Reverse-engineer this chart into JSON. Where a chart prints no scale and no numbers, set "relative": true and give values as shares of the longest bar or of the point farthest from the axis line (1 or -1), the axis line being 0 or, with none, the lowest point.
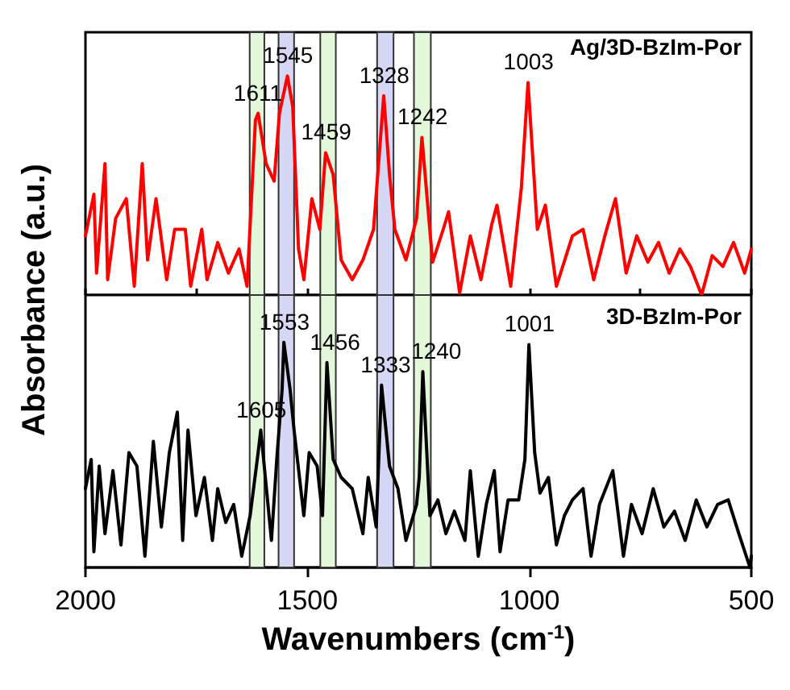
{
  "chart_data": [
    {
      "type": "line",
      "relative": true,
      "xlim": [
        2000,
        500
      ],
      "xticks": [
        {
          "value": 2000,
          "label": null
        },
        {
          "value": 1750,
          "label": null
        },
        {
          "value": 1500,
          "label": null
        },
        {
          "value": 1250,
          "label": null
        },
        {
          "value": 1000,
          "label": null
        },
        {
          "value": 750,
          "label": null
        },
        {
          "value": 500,
          "label": null
        }
      ],
      "tick_labels": false,
      "grid": false,
      "marker": "none",
      "line_style": "solid",
      "series": [
        {
          "color": "#ff0000",
          "x": [
            2000,
            1981,
            1975,
            1956,
            1950,
            1932,
            1908,
            1890,
            1872,
            1860,
            1841,
            1817,
            1799,
            1775,
            1763,
            1738,
            1726,
            1702,
            1678,
            1654,
            1636,
            1617,
            1611,
            1593,
            1575,
            1563,
            1545,
            1533,
            1520,
            1508,
            1490,
            1472,
            1459,
            1442,
            1424,
            1399,
            1375,
            1351,
            1328,
            1315,
            1303,
            1278,
            1254,
            1242,
            1218,
            1194,
            1182,
            1157,
            1133,
            1109,
            1085,
            1073,
            1042,
            1018,
            1003,
            982,
            964,
            939,
            903,
            879,
            855,
            830,
            806,
            782,
            758,
            733,
            709,
            685,
            661,
            637,
            612,
            588,
            564,
            540,
            515,
            500
          ],
          "values": [
            0.27,
            0.46,
            0.1,
            0.6,
            0.07,
            0.35,
            0.44,
            0.04,
            0.6,
            0.16,
            0.44,
            0.07,
            0.3,
            0.3,
            0.04,
            0.3,
            0.07,
            0.24,
            0.1,
            0.21,
            0.04,
            0.8,
            0.83,
            0.6,
            0.52,
            0.83,
            1.0,
            0.86,
            0.21,
            0.07,
            0.44,
            0.3,
            0.65,
            0.55,
            0.16,
            0.07,
            0.16,
            0.3,
            0.91,
            0.55,
            0.3,
            0.16,
            0.35,
            0.72,
            0.15,
            0.3,
            0.38,
            0.01,
            0.27,
            0.07,
            0.32,
            0.41,
            0.04,
            0.49,
            0.97,
            0.3,
            0.41,
            0.04,
            0.27,
            0.3,
            0.07,
            0.27,
            0.44,
            0.1,
            0.27,
            0.15,
            0.24,
            0.1,
            0.21,
            0.13,
            0,
            0.18,
            0.13,
            0.24,
            0.1,
            0.21
          ]
        }
      ],
      "bands": [
        {
          "axis": "x",
          "from": 1630,
          "to": 1597,
          "color": "#e3f7da"
        },
        {
          "axis": "x",
          "from": 1565,
          "to": 1530,
          "color": "#d6d6f5"
        },
        {
          "axis": "x",
          "from": 1471,
          "to": 1436,
          "color": "#e3f7da"
        },
        {
          "axis": "x",
          "from": 1343,
          "to": 1306,
          "color": "#d6d6f5"
        },
        {
          "axis": "x",
          "from": 1260,
          "to": 1222,
          "color": "#e3f7da"
        }
      ],
      "annotations": [
        "Ag/3D-BzIm-Por",
        {
          "text": "1611",
          "x": 1611,
          "y": 0.83
        },
        {
          "text": "1545",
          "x": 1545,
          "y": 1.0
        },
        {
          "text": "1459",
          "x": 1459,
          "y": 0.65
        },
        {
          "text": "1328",
          "x": 1328,
          "y": 0.91
        },
        {
          "text": "1242",
          "x": 1242,
          "y": 0.72
        },
        {
          "text": "1003",
          "x": 1003,
          "y": 0.97
        }
      ]
    },
    {
      "type": "line",
      "relative": true,
      "xlim": [
        2000,
        500
      ],
      "xticks": [
        2000,
        1500,
        1000,
        500
      ],
      "xlabel": "Wavenumbers (cm$^{-1}$)",
      "ylabel": "Absorbance (a.u.)",
      "tick_labels": "x",
      "grid": false,
      "marker": "none",
      "line_style": "solid",
      "series": [
        {
          "color": "#000000",
          "x": [
            2000,
            1987,
            1981,
            1969,
            1956,
            1938,
            1920,
            1902,
            1884,
            1866,
            1847,
            1829,
            1811,
            1793,
            1781,
            1769,
            1751,
            1732,
            1714,
            1702,
            1684,
            1666,
            1648,
            1629,
            1611,
            1605,
            1581,
            1569,
            1557,
            1553,
            1539,
            1530,
            1508,
            1496,
            1478,
            1466,
            1456,
            1442,
            1424,
            1399,
            1375,
            1363,
            1345,
            1333,
            1315,
            1296,
            1278,
            1254,
            1248,
            1240,
            1224,
            1206,
            1188,
            1169,
            1145,
            1133,
            1115,
            1097,
            1079,
            1066,
            1048,
            1024,
            1010,
            1001,
            988,
            976,
            957,
            939,
            921,
            903,
            879,
            861,
            842,
            812,
            788,
            770,
            746,
            721,
            697,
            673,
            649,
            624,
            600,
            576,
            552,
            528,
            503,
            500
          ],
          "values": [
            0.35,
            0.48,
            0.07,
            0.45,
            0.15,
            0.43,
            0.1,
            0.51,
            0.45,
            0.05,
            0.56,
            0.18,
            0.51,
            0.69,
            0.12,
            0.61,
            0.23,
            0.4,
            0.12,
            0.35,
            0.2,
            0.28,
            0.05,
            0.23,
            0.51,
            0.61,
            0.12,
            0.48,
            0.79,
            1.0,
            0.79,
            0.61,
            0.23,
            0.51,
            0.45,
            0.23,
            0.91,
            0.48,
            0.4,
            0.35,
            0.15,
            0.4,
            0.18,
            0.81,
            0.45,
            0.35,
            0.12,
            0.28,
            0.4,
            0.87,
            0.23,
            0.3,
            0.15,
            0.25,
            0.12,
            0.43,
            0.05,
            0.28,
            0.43,
            0.07,
            0.3,
            0.3,
            0.48,
            0.99,
            0.51,
            0.33,
            0.4,
            0.1,
            0.23,
            0.3,
            0.35,
            0.05,
            0.28,
            0.43,
            0.05,
            0.28,
            0.15,
            0.35,
            0.18,
            0.25,
            0.12,
            0.3,
            0.18,
            0.28,
            0.3,
            0.15,
            0,
            0.05
          ]
        }
      ],
      "bands": [
        {
          "axis": "x",
          "from": 1630,
          "to": 1597,
          "color": "#e3f7da"
        },
        {
          "axis": "x",
          "from": 1565,
          "to": 1530,
          "color": "#d6d6f5"
        },
        {
          "axis": "x",
          "from": 1471,
          "to": 1436,
          "color": "#e3f7da"
        },
        {
          "axis": "x",
          "from": 1343,
          "to": 1306,
          "color": "#d6d6f5"
        },
        {
          "axis": "x",
          "from": 1260,
          "to": 1222,
          "color": "#e3f7da"
        }
      ],
      "annotations": [
        "3D-BzIm-Por",
        {
          "text": "1605",
          "x": 1605,
          "y": 0.61
        },
        {
          "text": "1553",
          "x": 1553,
          "y": 1.0
        },
        {
          "text": "1456",
          "x": 1456,
          "y": 0.91
        },
        {
          "text": "1333",
          "x": 1333,
          "y": 0.81
        },
        {
          "text": "1240",
          "x": 1240,
          "y": 0.87
        },
        {
          "text": "1001",
          "x": 1001,
          "y": 0.99
        }
      ]
    }
  ]
}
